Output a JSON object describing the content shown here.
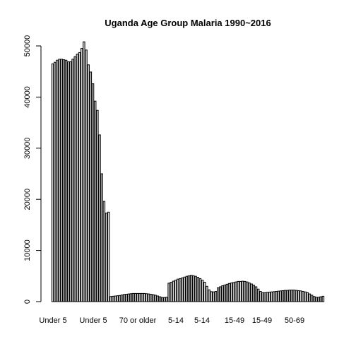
{
  "chart_data": {
    "type": "bar",
    "title": "Uganda Age Group Malaria 1990~2016",
    "xlabel": "",
    "ylabel": "",
    "ylim": [
      0,
      52000
    ],
    "yticks": [
      0,
      10000,
      20000,
      30000,
      40000,
      50000
    ],
    "x_tick_labels": [
      "Under 5",
      "Under 5",
      "70 or older",
      "5-14",
      "5-14",
      "15-49",
      "15-49",
      "50-69"
    ],
    "grid": false,
    "legend": "none",
    "bar_color": "#d9d9d9",
    "values": [
      46500,
      46800,
      47200,
      47400,
      47400,
      47300,
      47200,
      46900,
      46900,
      47400,
      47900,
      48400,
      48700,
      49500,
      50800,
      49200,
      46300,
      44900,
      42600,
      39200,
      37400,
      32600,
      25000,
      19600,
      17300,
      17500,
      1000,
      1050,
      1100,
      1150,
      1200,
      1300,
      1400,
      1450,
      1500,
      1550,
      1600,
      1600,
      1600,
      1600,
      1600,
      1600,
      1550,
      1500,
      1450,
      1350,
      1250,
      1100,
      950,
      800,
      800,
      850,
      3600,
      3800,
      4000,
      4200,
      4400,
      4500,
      4650,
      4800,
      4950,
      5050,
      5150,
      5050,
      4950,
      4750,
      4500,
      4200,
      3800,
      3000,
      2300,
      1950,
      1900,
      2000,
      2700,
      2900,
      3100,
      3250,
      3400,
      3550,
      3650,
      3750,
      3850,
      3950,
      3950,
      4000,
      3950,
      3850,
      3650,
      3450,
      3200,
      2900,
      2450,
      2000,
      1750,
      1750,
      1800,
      1850,
      1900,
      1950,
      2000,
      2050,
      2100,
      2150,
      2200,
      2200,
      2250,
      2250,
      2250,
      2200,
      2150,
      2100,
      2000,
      1900,
      1750,
      1500,
      1250,
      1000,
      850,
      850,
      950,
      1050
    ]
  }
}
